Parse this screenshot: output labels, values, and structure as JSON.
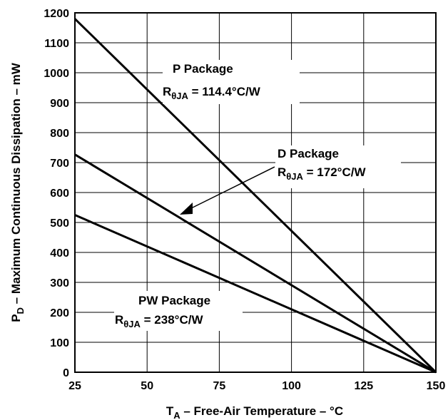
{
  "chart_data": {
    "type": "line",
    "xlabel": {
      "main": "T",
      "sub": "A",
      "rest": " – Free-Air Temperature – °C"
    },
    "ylabel": {
      "main": "P",
      "sub": "D",
      "rest": " – Maximum Continuous Dissipation – mW"
    },
    "xlim": [
      25,
      150
    ],
    "ylim": [
      0,
      1200
    ],
    "xticks": [
      "25",
      "50",
      "75",
      "100",
      "125",
      "150"
    ],
    "yticks": [
      "0",
      "100",
      "200",
      "300",
      "400",
      "500",
      "600",
      "700",
      "800",
      "900",
      "1000",
      "1100",
      "1200"
    ],
    "grid": true,
    "series": [
      {
        "name": "P Package",
        "thermal_resistance": "R",
        "x": [
          25,
          150
        ],
        "y": [
          1180,
          0
        ]
      },
      {
        "name": "D Package",
        "x": [
          25,
          150
        ],
        "y": [
          727,
          0
        ]
      },
      {
        "name": "PW Package",
        "x": [
          25,
          150
        ],
        "y": [
          525,
          0
        ]
      }
    ],
    "annotations": [
      {
        "title": "P Package",
        "r_main": "R",
        "r_sub": "θJA",
        "r_value": " = 114.4°C/W"
      },
      {
        "title": "D Package",
        "r_main": "R",
        "r_sub": "θJA",
        "r_value": " = 172°C/W"
      },
      {
        "title": "PW Package",
        "r_main": "R",
        "r_sub": "θJA",
        "r_value": " = 238°C/W"
      }
    ]
  }
}
